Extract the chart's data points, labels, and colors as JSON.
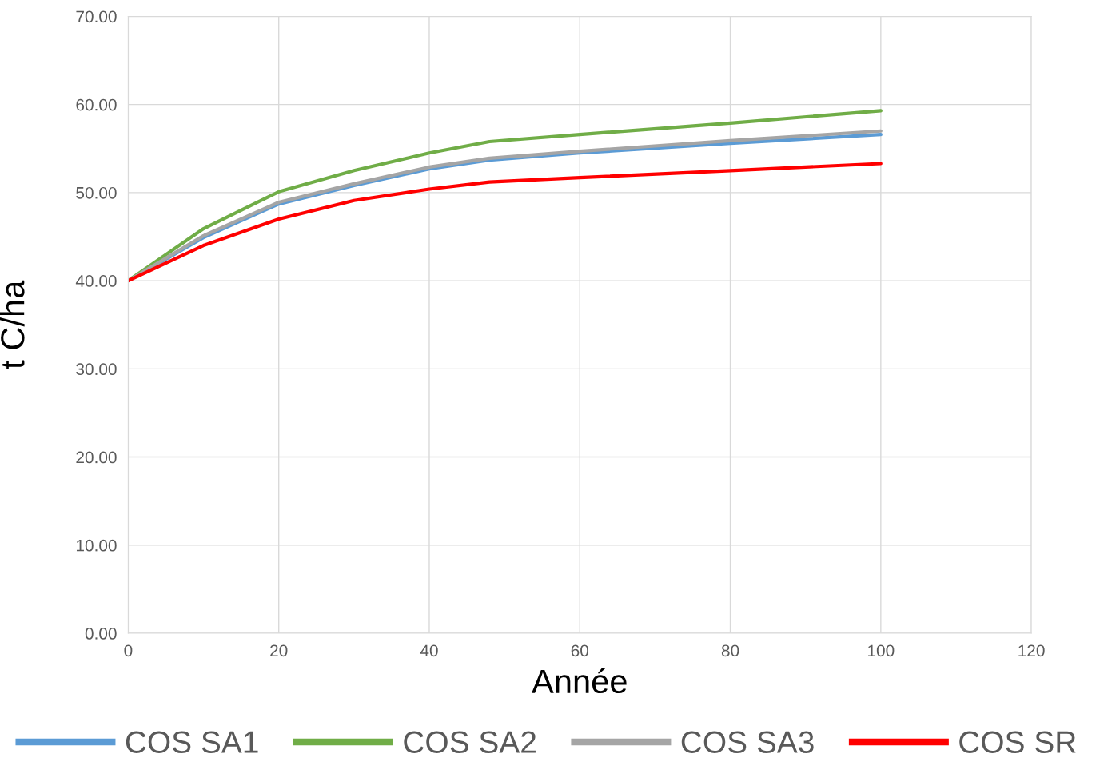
{
  "chart_data": {
    "type": "line",
    "xlabel": "Année",
    "ylabel": "t C/ha",
    "x": [
      0,
      10,
      20,
      30,
      40,
      48,
      60,
      80,
      100
    ],
    "series": [
      {
        "name": "COS SA1",
        "color": "#5b9bd5",
        "values": [
          40.0,
          44.9,
          48.7,
          50.8,
          52.7,
          53.7,
          54.5,
          55.6,
          56.6
        ]
      },
      {
        "name": "COS SA2",
        "color": "#70ad47",
        "values": [
          40.0,
          45.9,
          50.1,
          52.5,
          54.5,
          55.8,
          56.6,
          57.9,
          59.3
        ]
      },
      {
        "name": "COS SA3",
        "color": "#a5a5a5",
        "values": [
          40.0,
          45.1,
          48.9,
          51.0,
          52.9,
          53.9,
          54.7,
          55.9,
          57.0
        ]
      },
      {
        "name": "COS SR",
        "color": "#ff0000",
        "values": [
          40.0,
          44.0,
          47.0,
          49.1,
          50.4,
          51.2,
          51.7,
          52.5,
          53.3
        ]
      }
    ],
    "xlim": [
      0,
      120
    ],
    "xticks": [
      0,
      20,
      40,
      60,
      80,
      100,
      120
    ],
    "ylim": [
      0,
      70
    ],
    "yticks": [
      {
        "value": 0,
        "label": "0.00"
      },
      {
        "value": 10,
        "label": "10.00"
      },
      {
        "value": 20,
        "label": "20.00"
      },
      {
        "value": 30,
        "label": "30.00"
      },
      {
        "value": 40,
        "label": "40.00"
      },
      {
        "value": 50,
        "label": "50.00"
      },
      {
        "value": 60,
        "label": "60.00"
      },
      {
        "value": 70,
        "label": "70.00"
      }
    ],
    "grid": true,
    "legend": "bottom",
    "marker": "none",
    "line_style": "solid"
  }
}
